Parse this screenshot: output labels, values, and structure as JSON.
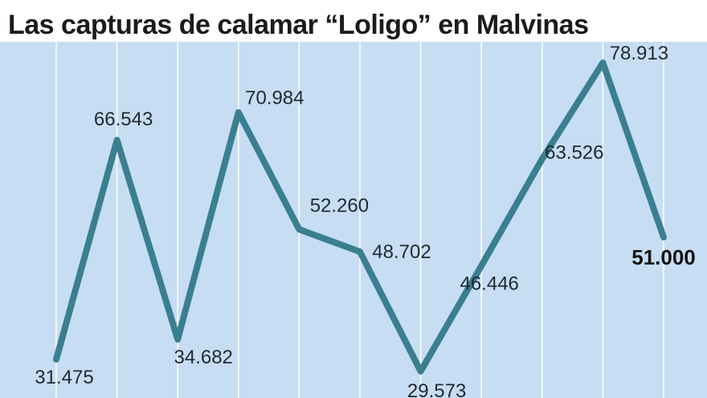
{
  "title": "Las capturas de calamar “Loligo” en Malvinas",
  "colors": {
    "background": "#c7ddf3",
    "line": "#3a7f90",
    "grid": "#ffffff",
    "title": "#1b1b1b"
  },
  "chart_data": {
    "type": "line",
    "title": "Las capturas de calamar “Loligo” en Malvinas",
    "xlabel": "",
    "ylabel": "",
    "grid": "vertical",
    "ylim": [
      25,
      85
    ],
    "labels": [
      "31.475",
      "66.543",
      "34.682",
      "70.984",
      "52.260",
      "48.702",
      "29.573",
      "46.446",
      "63.526",
      "78.913",
      "51.000"
    ],
    "values": [
      31.475,
      66.543,
      34.682,
      70.984,
      52.26,
      48.702,
      29.573,
      46.446,
      63.526,
      78.913,
      51.0
    ],
    "highlight_last": true
  }
}
